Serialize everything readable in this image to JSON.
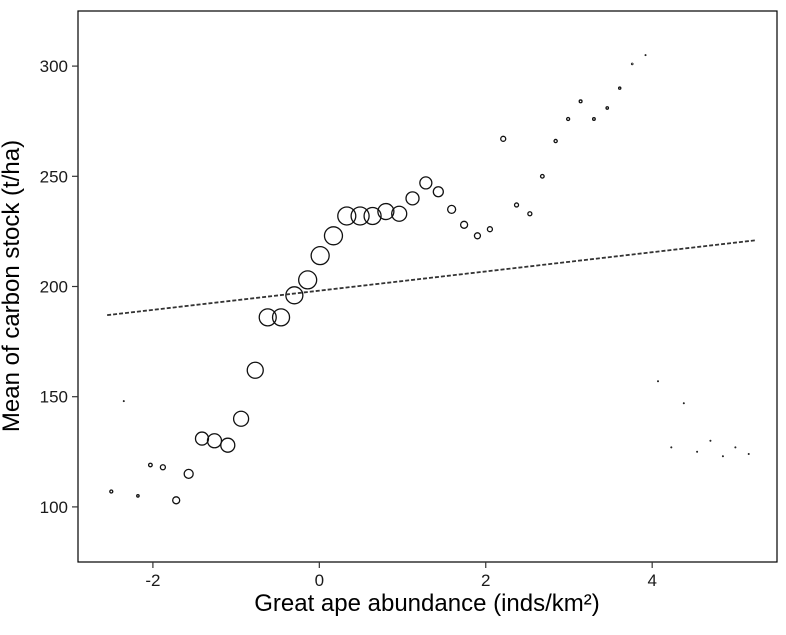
{
  "chart_data": {
    "type": "scatter",
    "title": "",
    "xlabel": "Great ape abundance (inds/km²)",
    "ylabel": "Mean of carbon stock (t/ha)",
    "xlim": [
      -2.9,
      5.5
    ],
    "ylim": [
      75,
      325
    ],
    "xticks": [
      -2,
      0,
      2,
      4
    ],
    "yticks": [
      100,
      150,
      200,
      250,
      300
    ],
    "xtick_labels": [
      "-2",
      "0",
      "2",
      "4"
    ],
    "ytick_labels": [
      "100",
      "150",
      "200",
      "250",
      "300"
    ],
    "grid": false,
    "legend": "none",
    "marker": "open circle, size proportional to weight",
    "points": [
      {
        "x": -2.5,
        "y": 107,
        "size": 1.5
      },
      {
        "x": -2.35,
        "y": 148,
        "size": 0.6
      },
      {
        "x": -2.18,
        "y": 105,
        "size": 1.2
      },
      {
        "x": -2.03,
        "y": 119,
        "size": 1.8
      },
      {
        "x": -1.88,
        "y": 118,
        "size": 2.5
      },
      {
        "x": -1.72,
        "y": 103,
        "size": 3.5
      },
      {
        "x": -1.57,
        "y": 115,
        "size": 4.5
      },
      {
        "x": -1.41,
        "y": 131,
        "size": 6.5
      },
      {
        "x": -1.26,
        "y": 130,
        "size": 7.0
      },
      {
        "x": -1.1,
        "y": 128,
        "size": 7.0
      },
      {
        "x": -0.94,
        "y": 140,
        "size": 7.5
      },
      {
        "x": -0.77,
        "y": 162,
        "size": 8.0
      },
      {
        "x": -0.62,
        "y": 186,
        "size": 8.5
      },
      {
        "x": -0.46,
        "y": 186,
        "size": 8.5
      },
      {
        "x": -0.3,
        "y": 196,
        "size": 8.5
      },
      {
        "x": -0.14,
        "y": 203,
        "size": 9.0
      },
      {
        "x": 0.01,
        "y": 214,
        "size": 9.0
      },
      {
        "x": 0.17,
        "y": 223,
        "size": 9.0
      },
      {
        "x": 0.33,
        "y": 232,
        "size": 9.0
      },
      {
        "x": 0.49,
        "y": 232,
        "size": 9.0
      },
      {
        "x": 0.64,
        "y": 232,
        "size": 8.5
      },
      {
        "x": 0.8,
        "y": 234,
        "size": 8.0
      },
      {
        "x": 0.96,
        "y": 233,
        "size": 7.5
      },
      {
        "x": 1.12,
        "y": 240,
        "size": 6.5
      },
      {
        "x": 1.28,
        "y": 247,
        "size": 6.0
      },
      {
        "x": 1.43,
        "y": 243,
        "size": 5.0
      },
      {
        "x": 1.59,
        "y": 235,
        "size": 4.0
      },
      {
        "x": 1.74,
        "y": 228,
        "size": 3.5
      },
      {
        "x": 1.9,
        "y": 223,
        "size": 3.0
      },
      {
        "x": 2.05,
        "y": 226,
        "size": 2.5
      },
      {
        "x": 2.21,
        "y": 267,
        "size": 2.5
      },
      {
        "x": 2.37,
        "y": 237,
        "size": 2.0
      },
      {
        "x": 2.53,
        "y": 233,
        "size": 2.0
      },
      {
        "x": 2.68,
        "y": 250,
        "size": 1.8
      },
      {
        "x": 2.84,
        "y": 266,
        "size": 1.6
      },
      {
        "x": 2.99,
        "y": 276,
        "size": 1.5
      },
      {
        "x": 3.14,
        "y": 284,
        "size": 1.4
      },
      {
        "x": 3.3,
        "y": 276,
        "size": 1.3
      },
      {
        "x": 3.46,
        "y": 281,
        "size": 1.2
      },
      {
        "x": 3.61,
        "y": 290,
        "size": 1.1
      },
      {
        "x": 3.76,
        "y": 301,
        "size": 0.9
      },
      {
        "x": 3.92,
        "y": 305,
        "size": 0.5
      },
      {
        "x": 4.07,
        "y": 157,
        "size": 0.3
      },
      {
        "x": 4.23,
        "y": 127,
        "size": 0.3
      },
      {
        "x": 4.38,
        "y": 147,
        "size": 0.3
      },
      {
        "x": 4.54,
        "y": 125,
        "size": 0.3
      },
      {
        "x": 4.7,
        "y": 130,
        "size": 0.3
      },
      {
        "x": 4.85,
        "y": 123,
        "size": 0.3
      },
      {
        "x": 5.0,
        "y": 127,
        "size": 0.3
      },
      {
        "x": 5.16,
        "y": 124,
        "size": 0.3
      }
    ],
    "fit_line": {
      "x": [
        -2.55,
        5.25
      ],
      "y": [
        187,
        221
      ],
      "style": "dashed"
    }
  }
}
